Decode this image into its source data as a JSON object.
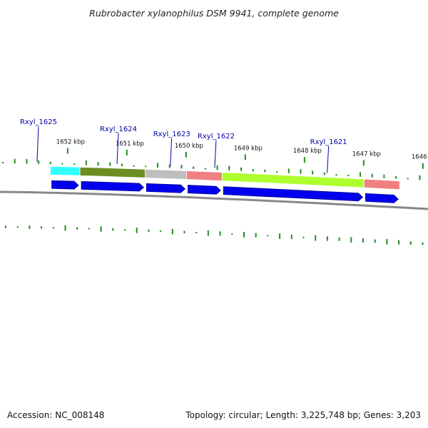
{
  "title": "Rubrobacter xylanophilus DSM 9941, complete genome",
  "footer": {
    "accession": "Accession: NC_008148",
    "summary": "Topology: circular; Length: 3,225,748 bp; Genes: 3,203"
  },
  "gene_labels": [
    {
      "name": "Rxyl_1625",
      "kbp": 1652.3
    },
    {
      "name": "Rxyl_1624",
      "kbp": 1650.95
    },
    {
      "name": "Rxyl_1623",
      "kbp": 1650.05
    },
    {
      "name": "Rxyl_1622",
      "kbp": 1649.3
    },
    {
      "name": "Rxyl_1621",
      "kbp": 1647.4
    }
  ],
  "kbp_ticks": [
    "1652 kbp",
    "1651 kbp",
    "1650 kbp",
    "1649 kbp",
    "1648 kbp",
    "1647 kbp",
    "1646 kbp"
  ],
  "kbp_tick_values": [
    1652,
    1651,
    1650,
    1649,
    1648,
    1647,
    1646
  ],
  "colors": {
    "title": "#222222",
    "gene_label": "#0000aa",
    "cds_arrow": "#0000ee",
    "gc_skew": "#228b22",
    "backbone": "#888888",
    "feature_cyan": "#33ffff",
    "feature_olive": "#6b8e23",
    "feature_gray": "#bebebe",
    "feature_salmon": "#f08080",
    "feature_lime": "#adff2f"
  },
  "features": [
    {
      "name": "Rxyl_1625",
      "color": "#33ffff",
      "start_kbp": 1652.1,
      "end_kbp": 1651.6
    },
    {
      "name": "Rxyl_1624",
      "color": "#6b8e23",
      "start_kbp": 1651.6,
      "end_kbp": 1650.5
    },
    {
      "name": "Rxyl_1623",
      "color": "#bebebe",
      "start_kbp": 1650.5,
      "end_kbp": 1649.8
    },
    {
      "name": "Rxyl_1622",
      "color": "#f08080",
      "start_kbp": 1649.8,
      "end_kbp": 1649.2
    },
    {
      "name": "Rxyl_1621",
      "color": "#adff2f",
      "start_kbp": 1649.2,
      "end_kbp": 1646.8
    },
    {
      "name": "",
      "color": "#f08080",
      "start_kbp": 1646.8,
      "end_kbp": 1646.2
    }
  ],
  "cds": [
    {
      "start_kbp": 1652.1,
      "end_kbp": 1651.6
    },
    {
      "start_kbp": 1651.6,
      "end_kbp": 1650.5
    },
    {
      "start_kbp": 1650.5,
      "end_kbp": 1649.8
    },
    {
      "start_kbp": 1649.8,
      "end_kbp": 1649.2
    },
    {
      "start_kbp": 1649.2,
      "end_kbp": 1646.8
    },
    {
      "start_kbp": 1646.8,
      "end_kbp": 1646.2
    }
  ]
}
